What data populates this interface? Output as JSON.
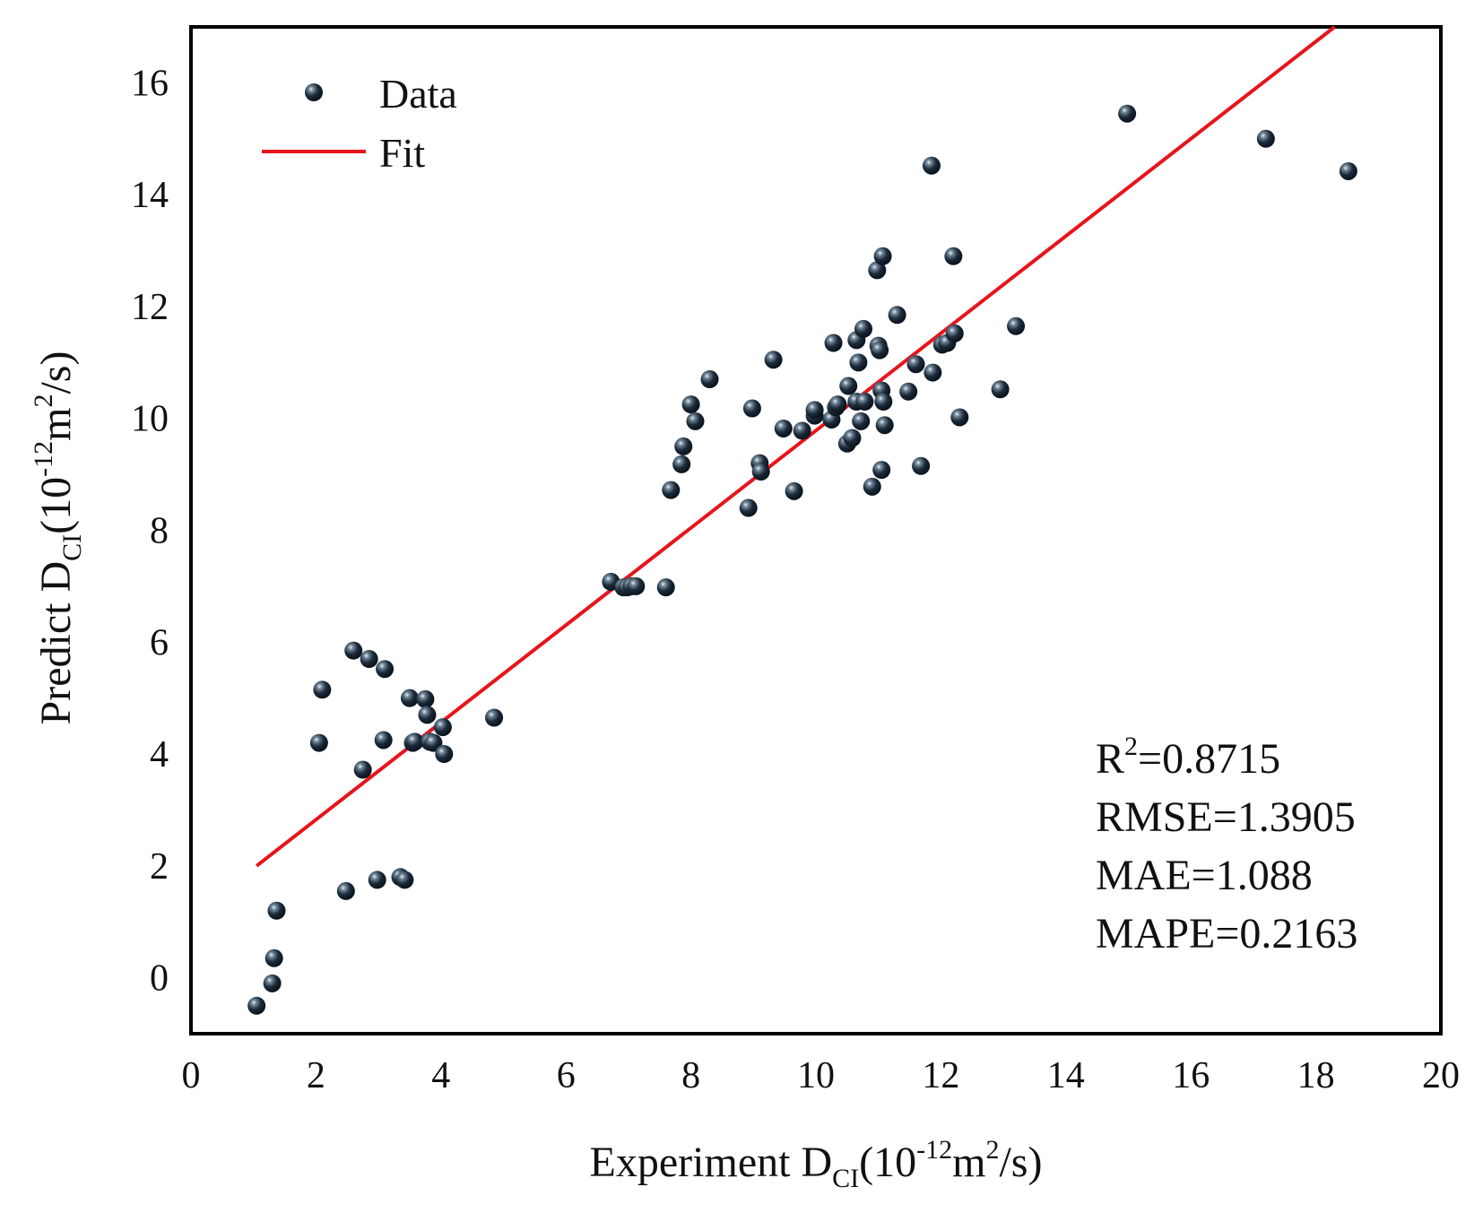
{
  "chart_data": {
    "type": "scatter",
    "xlabel": "Experiment D",
    "ylabel": "Predict D",
    "axis_label_sub": "CI",
    "axis_label_units_prefix": "(10",
    "axis_label_units_exp": "-12",
    "axis_label_units_mid": "m",
    "axis_label_units_exp2": "2",
    "axis_label_units_suffix": "/s)",
    "xlim": [
      0,
      20
    ],
    "ylim": [
      -1,
      17
    ],
    "xticks": [
      0,
      2,
      4,
      6,
      8,
      10,
      12,
      14,
      16,
      18,
      20
    ],
    "yticks": [
      0,
      2,
      4,
      6,
      8,
      10,
      12,
      14,
      16
    ],
    "colors": {
      "points": "#1c2b3a",
      "fit": "#e8141b",
      "frame": "#000000"
    },
    "legend": {
      "position": "top-left",
      "data_label": "Data",
      "fit_label": "Fit"
    },
    "fit_line": {
      "x": [
        1.05,
        18.3
      ],
      "y": [
        2.0,
        17.0
      ]
    },
    "metrics": {
      "r2_prefix": "R",
      "r2_exp": "2",
      "r2_value": "=0.8715",
      "rmse": "RMSE=1.3905",
      "mae": "MAE=1.088",
      "mape": "MAPE=0.2163"
    },
    "series": [
      {
        "name": "Data",
        "x": [
          1.05,
          1.3,
          1.33,
          1.37,
          2.05,
          2.1,
          2.48,
          2.6,
          2.75,
          2.85,
          2.98,
          3.08,
          3.1,
          3.35,
          3.42,
          3.5,
          3.55,
          3.58,
          3.75,
          3.78,
          3.82,
          3.88,
          4.03,
          4.05,
          4.85,
          6.72,
          6.92,
          6.98,
          7.05,
          7.12,
          7.6,
          7.68,
          7.85,
          7.88,
          8.0,
          8.07,
          8.3,
          8.92,
          8.98,
          9.1,
          9.12,
          9.32,
          9.48,
          9.65,
          9.78,
          9.98,
          9.98,
          10.25,
          10.28,
          10.32,
          10.35,
          10.5,
          10.52,
          10.58,
          10.65,
          10.65,
          10.68,
          10.72,
          10.76,
          10.78,
          10.9,
          10.98,
          11.0,
          11.02,
          11.05,
          11.05,
          11.07,
          11.08,
          11.1,
          11.3,
          11.48,
          11.6,
          11.68,
          11.85,
          11.87,
          12.02,
          12.1,
          12.2,
          12.22,
          12.3,
          12.95,
          13.2,
          14.98,
          17.2,
          18.52
        ],
        "y": [
          -0.5,
          -0.1,
          0.35,
          1.2,
          4.2,
          5.15,
          1.55,
          5.85,
          3.72,
          5.7,
          1.75,
          4.25,
          5.52,
          1.8,
          1.75,
          5.0,
          4.2,
          4.22,
          4.98,
          4.7,
          4.22,
          4.2,
          4.48,
          4.0,
          4.65,
          7.08,
          6.98,
          6.98,
          7.0,
          7.0,
          6.98,
          8.72,
          9.18,
          9.5,
          10.25,
          9.95,
          10.7,
          8.4,
          10.18,
          9.2,
          9.05,
          11.05,
          9.82,
          8.7,
          9.78,
          10.05,
          10.15,
          9.98,
          11.35,
          10.2,
          10.25,
          9.55,
          10.58,
          9.65,
          10.3,
          11.4,
          11.0,
          9.95,
          11.6,
          10.3,
          8.78,
          12.65,
          11.3,
          11.22,
          10.5,
          9.08,
          12.9,
          10.3,
          9.88,
          11.85,
          10.48,
          10.97,
          9.15,
          14.52,
          10.82,
          11.32,
          11.35,
          12.9,
          11.52,
          10.02,
          10.52,
          11.65,
          15.45,
          15.0,
          14.42
        ]
      }
    ]
  }
}
